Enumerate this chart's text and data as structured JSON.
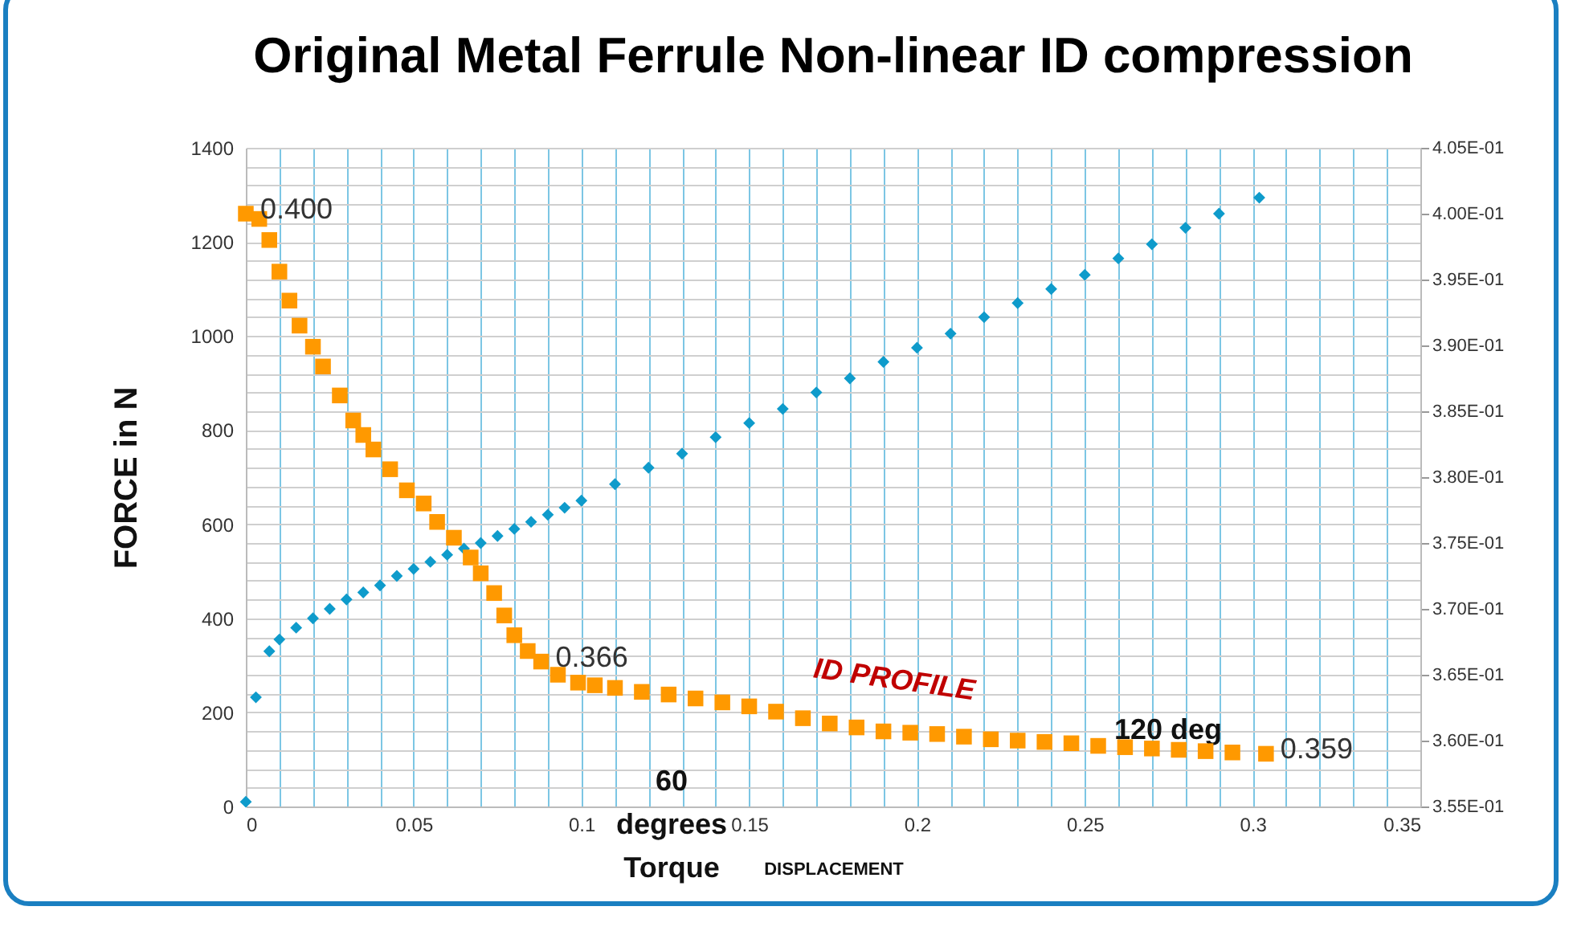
{
  "chart_data": {
    "type": "scatter",
    "title": "Original Metal Ferrule Non-linear ID compression",
    "xlabel": "DISPLACEMENT",
    "ylabel": "FORCE in N",
    "xlim": [
      0,
      0.35
    ],
    "xticks": [
      0,
      {
        "value": 0.01,
        "label": null
      },
      {
        "value": 0.02,
        "label": null
      },
      {
        "value": 0.03,
        "label": null
      },
      {
        "value": 0.04,
        "label": null
      },
      0.05,
      {
        "value": 0.06,
        "label": null
      },
      {
        "value": 0.07,
        "label": null
      },
      {
        "value": 0.08,
        "label": null
      },
      {
        "value": 0.09,
        "label": null
      },
      0.1,
      {
        "value": 0.11,
        "label": null
      },
      {
        "value": 0.12,
        "label": null
      },
      {
        "value": 0.13,
        "label": null
      },
      {
        "value": 0.14,
        "label": null
      },
      0.15,
      {
        "value": 0.16,
        "label": null
      },
      {
        "value": 0.17,
        "label": null
      },
      {
        "value": 0.18,
        "label": null
      },
      {
        "value": 0.19,
        "label": null
      },
      0.2,
      {
        "value": 0.21,
        "label": null
      },
      {
        "value": 0.22,
        "label": null
      },
      {
        "value": 0.23,
        "label": null
      },
      {
        "value": 0.24,
        "label": null
      },
      0.25,
      {
        "value": 0.26,
        "label": null
      },
      {
        "value": 0.27,
        "label": null
      },
      {
        "value": 0.28,
        "label": null
      },
      {
        "value": 0.29,
        "label": null
      },
      0.3,
      {
        "value": 0.31,
        "label": null
      },
      {
        "value": 0.32,
        "label": null
      },
      {
        "value": 0.33,
        "label": null
      },
      {
        "value": 0.34,
        "label": null
      },
      0.35
    ],
    "ylim": [
      0,
      1400
    ],
    "yticks": [
      0,
      {
        "value": 40,
        "label": null
      },
      {
        "value": 80,
        "label": null
      },
      {
        "value": 120,
        "label": null
      },
      {
        "value": 160,
        "label": null
      },
      200,
      {
        "value": 240,
        "label": null
      },
      {
        "value": 280,
        "label": null
      },
      {
        "value": 320,
        "label": null
      },
      {
        "value": 360,
        "label": null
      },
      400,
      {
        "value": 440,
        "label": null
      },
      {
        "value": 480,
        "label": null
      },
      {
        "value": 520,
        "label": null
      },
      {
        "value": 560,
        "label": null
      },
      600,
      {
        "value": 640,
        "label": null
      },
      {
        "value": 680,
        "label": null
      },
      {
        "value": 720,
        "label": null
      },
      {
        "value": 760,
        "label": null
      },
      800,
      {
        "value": 840,
        "label": null
      },
      {
        "value": 880,
        "label": null
      },
      {
        "value": 920,
        "label": null
      },
      {
        "value": 960,
        "label": null
      },
      1000,
      {
        "value": 1040,
        "label": null
      },
      {
        "value": 1080,
        "label": null
      },
      {
        "value": 1120,
        "label": null
      },
      {
        "value": 1160,
        "label": null
      },
      1200,
      {
        "value": 1240,
        "label": null
      },
      {
        "value": 1280,
        "label": null
      },
      {
        "value": 1320,
        "label": null
      },
      {
        "value": 1360,
        "label": null
      },
      1400
    ],
    "y2lim": [
      0.355,
      0.405
    ],
    "y2ticks": [
      {
        "value": 0.355,
        "label": "3.55E-01"
      },
      {
        "value": 0.36,
        "label": "3.60E-01"
      },
      {
        "value": 0.365,
        "label": "3.65E-01"
      },
      {
        "value": 0.37,
        "label": "3.70E-01"
      },
      {
        "value": 0.375,
        "label": "3.75E-01"
      },
      {
        "value": 0.38,
        "label": "3.80E-01"
      },
      {
        "value": 0.385,
        "label": "3.85E-01"
      },
      {
        "value": 0.39,
        "label": "3.90E-01"
      },
      {
        "value": 0.395,
        "label": "3.95E-01"
      },
      {
        "value": 0.4,
        "label": "4.00E-01"
      },
      {
        "value": 0.405,
        "label": "4.05E-01"
      }
    ],
    "grid": true,
    "series": [
      {
        "color": "#0e9bcb",
        "marker": "diamond",
        "x": [
          0,
          0.003,
          0.007,
          0.01,
          0.015,
          0.02,
          0.025,
          0.03,
          0.035,
          0.04,
          0.045,
          0.05,
          0.055,
          0.06,
          0.065,
          0.07,
          0.075,
          0.08,
          0.085,
          0.09,
          0.095,
          0.1,
          0.11,
          0.12,
          0.13,
          0.14,
          0.15,
          0.16,
          0.17,
          0.18,
          0.19,
          0.2,
          0.21,
          0.22,
          0.23,
          0.24,
          0.25,
          0.26,
          0.27,
          0.28,
          0.29,
          0.302
        ],
        "values": [
          10,
          232,
          330,
          355,
          380,
          400,
          420,
          440,
          455,
          470,
          490,
          505,
          520,
          535,
          548,
          560,
          575,
          590,
          605,
          620,
          635,
          650,
          685,
          720,
          750,
          785,
          815,
          845,
          880,
          910,
          945,
          975,
          1005,
          1040,
          1070,
          1100,
          1130,
          1165,
          1195,
          1230,
          1260,
          1294
        ]
      },
      {
        "name": "ID PROFILE",
        "axis": "y2",
        "color": "#ff9900",
        "marker": "square",
        "x": [
          0,
          0.004,
          0.007,
          0.01,
          0.013,
          0.016,
          0.02,
          0.023,
          0.028,
          0.032,
          0.035,
          0.038,
          0.043,
          0.048,
          0.053,
          0.057,
          0.062,
          0.067,
          0.07,
          0.074,
          0.077,
          0.08,
          0.084,
          0.088,
          0.093,
          0.099,
          0.104,
          0.11,
          0.118,
          0.126,
          0.134,
          0.142,
          0.15,
          0.158,
          0.166,
          0.174,
          0.182,
          0.19,
          0.198,
          0.206,
          0.214,
          0.222,
          0.23,
          0.238,
          0.246,
          0.254,
          0.262,
          0.27,
          0.278,
          0.286,
          0.294,
          0.304
        ],
        "values": [
          0.4,
          0.3996,
          0.398,
          0.3956,
          0.3934,
          0.3915,
          0.3899,
          0.3884,
          0.3862,
          0.3843,
          0.3832,
          0.3821,
          0.3806,
          0.379,
          0.378,
          0.3766,
          0.3754,
          0.3739,
          0.3727,
          0.3712,
          0.3695,
          0.368,
          0.3668,
          0.366,
          0.365,
          0.3644,
          0.3642,
          0.364,
          0.3637,
          0.3635,
          0.3632,
          0.3629,
          0.3626,
          0.3622,
          0.3617,
          0.3613,
          0.361,
          0.3607,
          0.3606,
          0.3605,
          0.3603,
          0.3601,
          0.36,
          0.3599,
          0.3598,
          0.3596,
          0.3595,
          0.3594,
          0.3593,
          0.3592,
          0.3591,
          0.359
        ],
        "value_labels": [
          "0.400",
          null,
          null,
          null,
          null,
          null,
          null,
          null,
          null,
          null,
          null,
          null,
          null,
          null,
          null,
          null,
          null,
          null,
          null,
          null,
          null,
          null,
          null,
          "0.366",
          null,
          null,
          null,
          null,
          null,
          null,
          null,
          null,
          null,
          null,
          null,
          null,
          null,
          null,
          null,
          null,
          null,
          null,
          null,
          null,
          null,
          null,
          null,
          null,
          null,
          null,
          null,
          "0.359"
        ]
      }
    ],
    "annotations": [
      "60\ndegrees\nTorque",
      "120 deg"
    ]
  }
}
